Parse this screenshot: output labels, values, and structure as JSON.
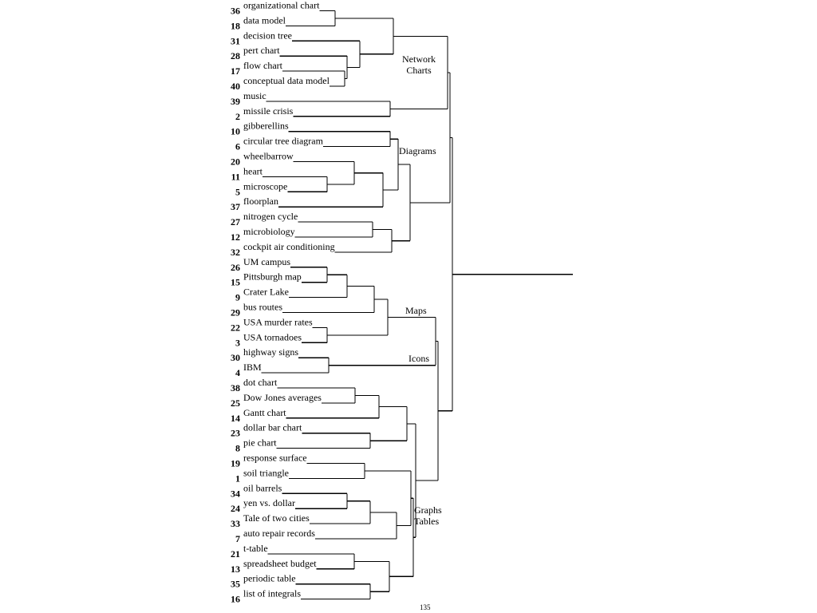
{
  "leaves": [
    {
      "num": "36",
      "label": "organizational chart"
    },
    {
      "num": "18",
      "label": "data model"
    },
    {
      "num": "31",
      "label": "decision tree"
    },
    {
      "num": "28",
      "label": "pert chart"
    },
    {
      "num": "17",
      "label": "flow chart"
    },
    {
      "num": "40",
      "label": "conceptual data model"
    },
    {
      "num": "39",
      "label": "music"
    },
    {
      "num": "2",
      "label": "missile crisis"
    },
    {
      "num": "10",
      "label": "gibberellins"
    },
    {
      "num": "6",
      "label": "circular tree diagram"
    },
    {
      "num": "20",
      "label": "wheelbarrow"
    },
    {
      "num": "11",
      "label": "heart"
    },
    {
      "num": "5",
      "label": "microscope"
    },
    {
      "num": "37",
      "label": "floorplan"
    },
    {
      "num": "27",
      "label": "nitrogen cycle"
    },
    {
      "num": "12",
      "label": "microbiology"
    },
    {
      "num": "32",
      "label": "cockpit air conditioning"
    },
    {
      "num": "26",
      "label": "UM campus"
    },
    {
      "num": "15",
      "label": "Pittsburgh map"
    },
    {
      "num": "9",
      "label": "Crater Lake"
    },
    {
      "num": "29",
      "label": "bus routes"
    },
    {
      "num": "22",
      "label": "USA murder rates"
    },
    {
      "num": "3",
      "label": "USA tornadoes"
    },
    {
      "num": "30",
      "label": "highway signs"
    },
    {
      "num": "4",
      "label": "IBM"
    },
    {
      "num": "38",
      "label": "dot chart"
    },
    {
      "num": "25",
      "label": "Dow Jones averages"
    },
    {
      "num": "14",
      "label": "Gantt chart"
    },
    {
      "num": "23",
      "label": "dollar bar chart"
    },
    {
      "num": "8",
      "label": "pie chart"
    },
    {
      "num": "19",
      "label": "response surface"
    },
    {
      "num": "1",
      "label": "soil triangle"
    },
    {
      "num": "34",
      "label": "oil barrels"
    },
    {
      "num": "24",
      "label": "yen vs. dollar"
    },
    {
      "num": "33",
      "label": "Tale of two cities"
    },
    {
      "num": "7",
      "label": "auto repair records"
    },
    {
      "num": "21",
      "label": "t-table"
    },
    {
      "num": "13",
      "label": "spreadsheet budget"
    },
    {
      "num": "35",
      "label": "periodic table"
    },
    {
      "num": "16",
      "label": "list of integrals"
    }
  ],
  "clusters": [
    {
      "id": "network-charts",
      "lines": [
        "Network",
        "Charts"
      ]
    },
    {
      "id": "diagrams",
      "lines": [
        "Diagrams"
      ]
    },
    {
      "id": "maps",
      "lines": [
        "Maps"
      ]
    },
    {
      "id": "icons",
      "lines": [
        "Icons"
      ]
    },
    {
      "id": "graphs-tables",
      "lines": [
        "Graphs",
        "Tables"
      ]
    }
  ],
  "page_number": "135"
}
